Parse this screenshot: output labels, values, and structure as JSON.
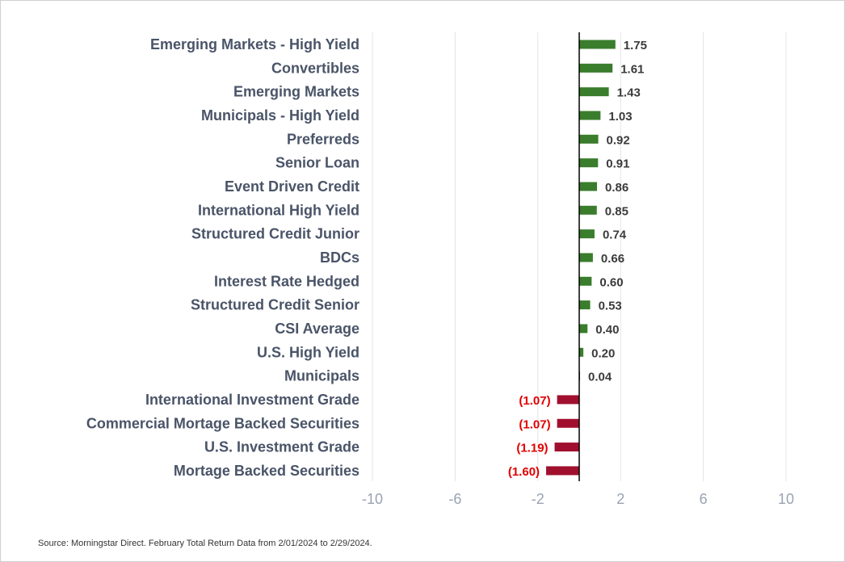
{
  "chart_data": {
    "type": "bar",
    "orientation": "horizontal",
    "title": "",
    "xlabel": "",
    "ylabel": "",
    "xlim": [
      -10,
      10
    ],
    "xticks": [
      "-10",
      "-6",
      "-2",
      "2",
      "6",
      "10"
    ],
    "xtick_values": [
      -10,
      -6,
      -2,
      2,
      6,
      10
    ],
    "grid": true,
    "colors": {
      "positive": "#3a7d2c",
      "negative": "#a0102e",
      "positive_label": "#3b3b3b",
      "negative_label": "#e00000",
      "category_label": "#4a5468",
      "tick_label": "#9aa3b2",
      "zero_line": "#000000",
      "grid": "#e4e4e4"
    },
    "categories": [
      "Emerging Markets - High Yield",
      "Convertibles",
      "Emerging Markets",
      "Municipals - High Yield",
      "Preferreds",
      "Senior Loan",
      "Event Driven Credit",
      "International High Yield",
      "Structured Credit Junior",
      "BDCs",
      "Interest Rate Hedged",
      "Structured Credit Senior",
      "CSI Average",
      "U.S. High Yield",
      "Municipals",
      "International Investment Grade",
      "Commercial Mortage Backed Securities",
      "U.S. Investment Grade",
      "Mortage Backed Securities"
    ],
    "values": [
      1.75,
      1.61,
      1.43,
      1.03,
      0.92,
      0.91,
      0.86,
      0.85,
      0.74,
      0.66,
      0.6,
      0.53,
      0.4,
      0.2,
      0.04,
      -1.07,
      -1.07,
      -1.19,
      -1.6
    ],
    "value_labels": [
      "1.75",
      "1.61",
      "1.43",
      "1.03",
      "0.92",
      "0.91",
      "0.86",
      "0.85",
      "0.74",
      "0.66",
      "0.60",
      "0.53",
      "0.40",
      "0.20",
      "0.04",
      "(1.07)",
      "(1.07)",
      "(1.19)",
      "(1.60)"
    ]
  },
  "footer": {
    "source": "Source: Morningstar Direct. February Total Return Data from 2/01/2024 to 2/29/2024."
  }
}
